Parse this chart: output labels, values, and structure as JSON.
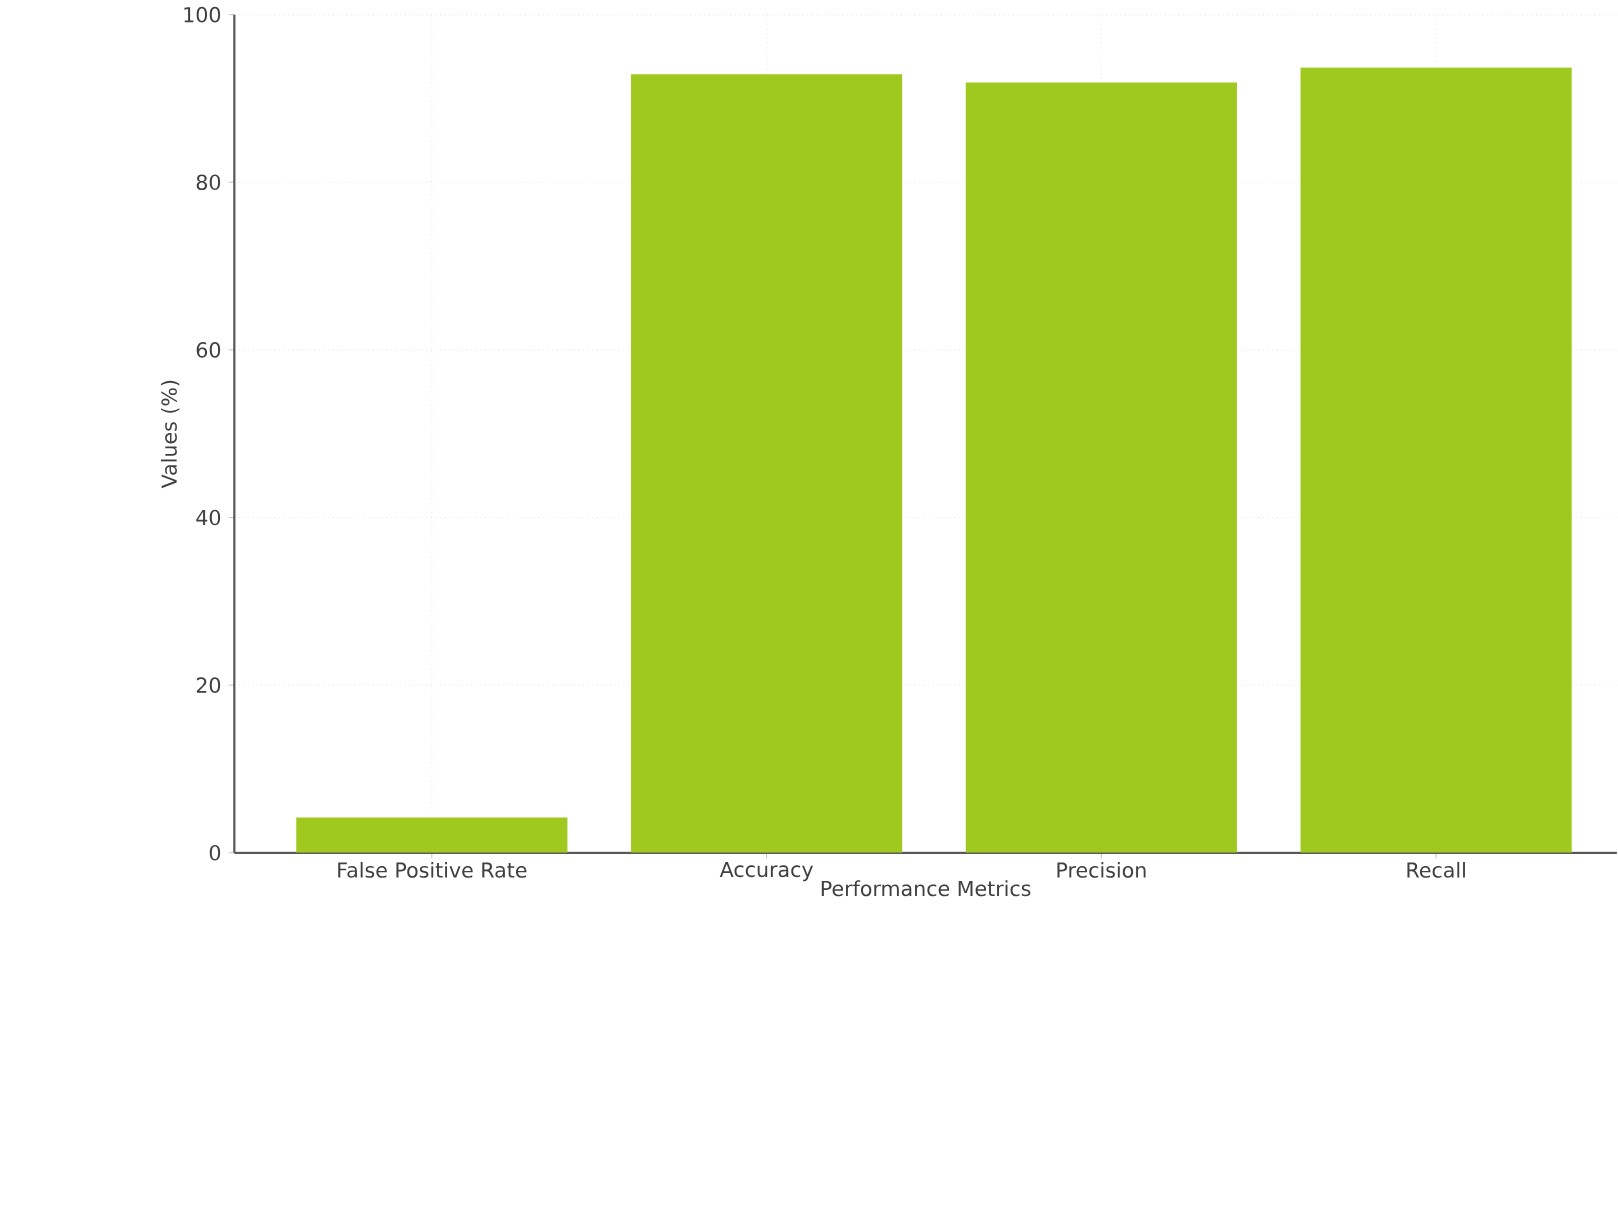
{
  "chart_data": {
    "type": "bar",
    "xlabel": "Performance Metrics",
    "ylabel": "Values (%)",
    "categories": [
      "False Positive Rate",
      "Accuracy",
      "Precision",
      "Recall"
    ],
    "values": [
      4.2,
      92.9,
      91.9,
      93.7
    ],
    "color": "#9fc91f",
    "ylim": [
      0,
      100
    ],
    "yticks": [
      0,
      20,
      40,
      60,
      80,
      100
    ],
    "grid": true
  }
}
